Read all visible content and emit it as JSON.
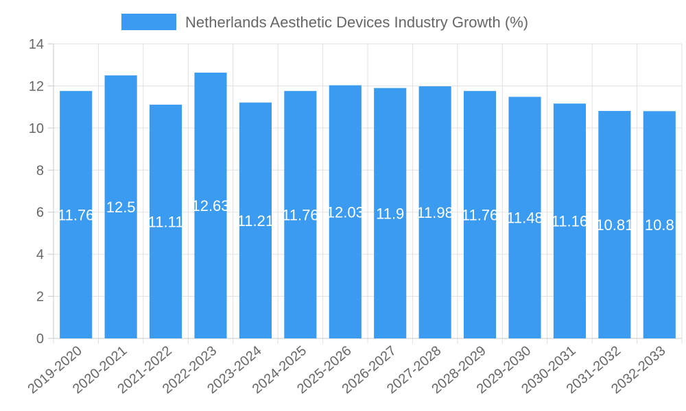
{
  "chart_data": {
    "type": "bar",
    "categories": [
      "2019-2020",
      "2020-2021",
      "2021-2022",
      "2022-2023",
      "2023-2024",
      "2024-2025",
      "2025-2026",
      "2026-2027",
      "2027-2028",
      "2028-2029",
      "2029-2030",
      "2030-2031",
      "2031-2032",
      "2032-2033"
    ],
    "series": [
      {
        "name": "Netherlands Aesthetic Devices Industry Growth (%)",
        "values": [
          11.76,
          12.5,
          11.11,
          12.63,
          11.21,
          11.76,
          12.03,
          11.9,
          11.98,
          11.76,
          11.48,
          11.16,
          10.81,
          10.8
        ],
        "color": "#3a9bf0"
      }
    ],
    "ylim": [
      0,
      14
    ],
    "yticks": [
      0,
      2,
      4,
      6,
      8,
      10,
      12,
      14
    ],
    "grid": true,
    "legend_position": "top-center",
    "title": "",
    "xlabel": "",
    "ylabel": ""
  }
}
